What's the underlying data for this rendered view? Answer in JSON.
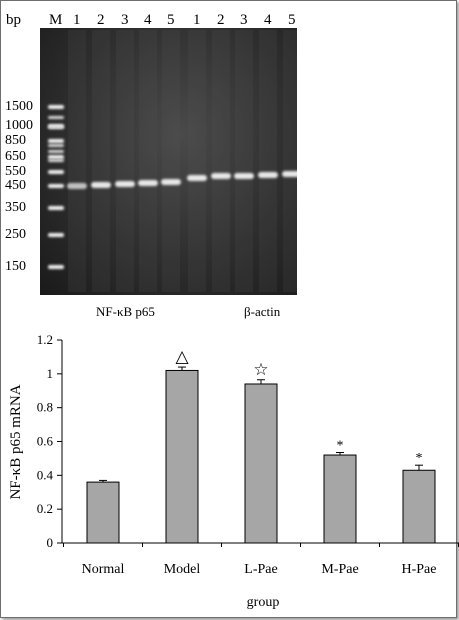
{
  "gel": {
    "bp_label": "bp",
    "marker_lane_label": "M",
    "lane_numbers_left": [
      "1",
      "2",
      "3",
      "4",
      "5"
    ],
    "lane_numbers_right": [
      "1",
      "2",
      "3",
      "4",
      "5"
    ],
    "marker_sizes": [
      "1500",
      "1000",
      "850",
      "650",
      "550",
      "450",
      "350",
      "250",
      "150"
    ],
    "left_group_caption": "NF-κB p65",
    "right_group_caption": "β-actin",
    "background_color": "#2e2e2e",
    "band_color": "#f2f2f2"
  },
  "chart_data": {
    "type": "bar",
    "categories": [
      "Normal",
      "Model",
      "L-Pae",
      "M-Pae",
      "H-Pae"
    ],
    "values": [
      0.36,
      1.02,
      0.94,
      0.52,
      0.43
    ],
    "errors": [
      0.01,
      0.02,
      0.025,
      0.015,
      0.03
    ],
    "annotations": [
      "",
      "△",
      "☆",
      "*",
      "*"
    ],
    "xlabel": "group",
    "ylabel": "NF-κB p65 mRNA",
    "ylim": [
      0,
      1.2
    ],
    "yticks": [
      "0",
      "0.2",
      "0.4",
      "0.6",
      "0.8",
      "1",
      "1.2"
    ],
    "grid": false,
    "bar_color": "#a6a6a6",
    "bar_edge_color": "#000000"
  }
}
